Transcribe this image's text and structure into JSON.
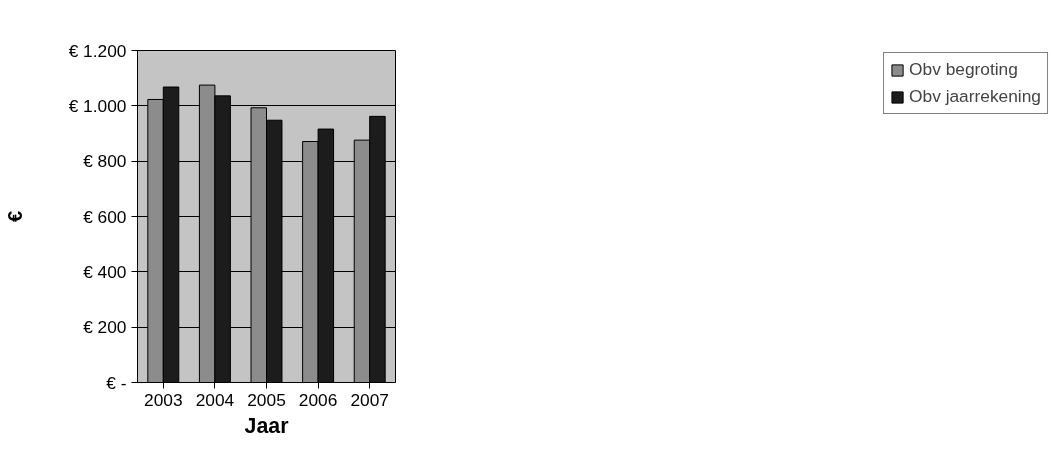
{
  "chart_data": {
    "type": "bar",
    "xlabel": "Jaar",
    "ylabel": "€",
    "categories": [
      "2003",
      "2004",
      "2005",
      "2006",
      "2007"
    ],
    "series": [
      {
        "name": "Obv begroting",
        "color": "#8c8c8c",
        "values": [
          1023,
          1075,
          993,
          871,
          876
        ]
      },
      {
        "name": "Obv jaarrekening",
        "color": "#1c1c1c",
        "values": [
          1068,
          1036,
          948,
          916,
          962
        ]
      }
    ],
    "ylim": [
      0,
      1200
    ],
    "yticks": [
      {
        "value": 0,
        "label": "€ -"
      },
      {
        "value": 200,
        "label": "€ 200"
      },
      {
        "value": 400,
        "label": "€ 400"
      },
      {
        "value": 600,
        "label": "€ 600"
      },
      {
        "value": 800,
        "label": "€ 800"
      },
      {
        "value": 1000,
        "label": "€ 1.000"
      },
      {
        "value": 1200,
        "label": "€ 1.200"
      }
    ],
    "grid": "y",
    "legend": "right"
  }
}
